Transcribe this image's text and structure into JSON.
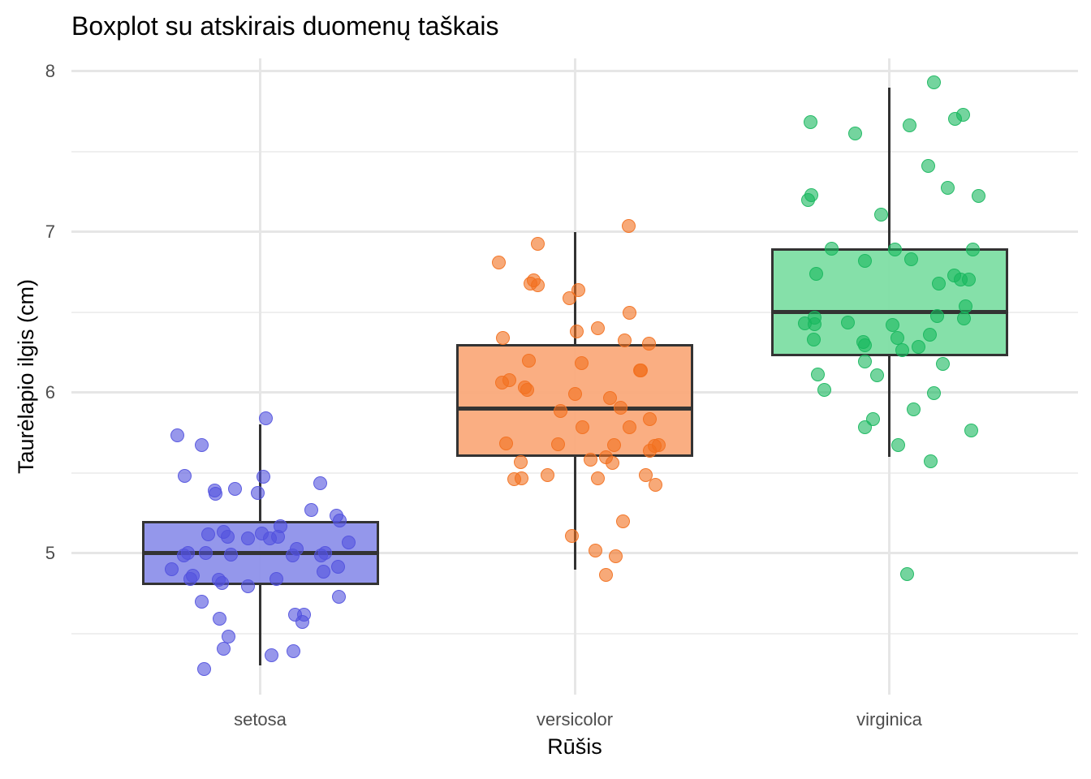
{
  "title": "Boxplot su atskirais duomenų taškais",
  "chart_data": {
    "type": "boxplot",
    "overlay": "jittered_points",
    "title": "Boxplot su atskirais duomenų taškais",
    "xlabel": "Rūšis",
    "ylabel": "Taurėlapio ilgis (cm)",
    "categories": [
      "setosa",
      "versicolor",
      "virginica"
    ],
    "y_ticks": [
      8,
      7,
      6,
      5
    ],
    "y_minor_ticks": [
      7.5,
      6.5,
      5.5,
      4.5
    ],
    "ylim": [
      4.12,
      8.08
    ],
    "grid": "horizontal major+minor gridlines, vertical gridline at each category, no axis lines, white background",
    "legend": "none",
    "box_border_color": "#333333",
    "series": [
      {
        "name": "setosa",
        "point_color": "#5252DE",
        "box_fill": "#8C8FEA",
        "stats": {
          "whisker_low": 4.3,
          "q1": 4.8,
          "median": 5.0,
          "q3": 5.2,
          "whisker_high": 5.8,
          "outliers": []
        },
        "values": [
          5.1,
          4.9,
          4.7,
          4.6,
          5.0,
          5.4,
          4.6,
          5.0,
          4.4,
          4.9,
          5.4,
          4.8,
          4.8,
          4.3,
          5.8,
          5.7,
          5.4,
          5.1,
          5.7,
          5.1,
          5.4,
          5.1,
          4.6,
          5.1,
          4.8,
          5.0,
          5.0,
          5.2,
          5.2,
          4.7,
          4.8,
          5.4,
          5.2,
          5.5,
          4.9,
          5.0,
          5.5,
          4.9,
          4.4,
          5.1,
          5.0,
          4.5,
          4.4,
          5.0,
          5.1,
          4.8,
          5.1,
          4.6,
          5.3,
          5.0
        ]
      },
      {
        "name": "versicolor",
        "point_color": "#F2701E",
        "box_fill": "#FAA878",
        "stats": {
          "whisker_low": 4.9,
          "q1": 5.6,
          "median": 5.9,
          "q3": 6.3,
          "whisker_high": 7.0,
          "outliers": []
        },
        "values": [
          7.0,
          6.4,
          6.9,
          5.5,
          6.5,
          5.7,
          6.3,
          4.9,
          6.6,
          5.2,
          5.0,
          5.9,
          6.0,
          6.1,
          5.6,
          6.7,
          5.6,
          5.8,
          6.2,
          5.6,
          5.9,
          6.1,
          6.3,
          6.1,
          6.4,
          6.6,
          6.8,
          6.7,
          6.0,
          5.7,
          5.5,
          5.5,
          5.8,
          6.0,
          5.4,
          6.0,
          6.7,
          6.3,
          5.6,
          5.5,
          5.5,
          6.1,
          5.8,
          5.0,
          5.6,
          5.7,
          5.7,
          6.2,
          5.1,
          5.7
        ]
      },
      {
        "name": "virginica",
        "point_color": "#17B75E",
        "box_fill": "#7CDEA2",
        "stats": {
          "whisker_low": 5.6,
          "q1": 6.225,
          "median": 6.5,
          "q3": 6.9,
          "whisker_high": 7.9,
          "outliers": [
            4.9
          ]
        },
        "values": [
          6.3,
          5.8,
          7.1,
          6.3,
          6.5,
          7.6,
          4.9,
          7.3,
          6.7,
          7.2,
          6.5,
          6.4,
          6.8,
          5.7,
          5.8,
          6.4,
          6.5,
          7.7,
          7.7,
          6.0,
          6.9,
          5.6,
          7.7,
          6.3,
          6.7,
          7.2,
          6.2,
          6.1,
          6.4,
          7.2,
          7.4,
          7.9,
          6.4,
          6.3,
          6.1,
          7.7,
          6.3,
          6.4,
          6.0,
          6.9,
          6.7,
          6.9,
          5.8,
          6.8,
          6.7,
          6.7,
          6.3,
          6.5,
          6.2,
          5.9
        ]
      }
    ]
  }
}
